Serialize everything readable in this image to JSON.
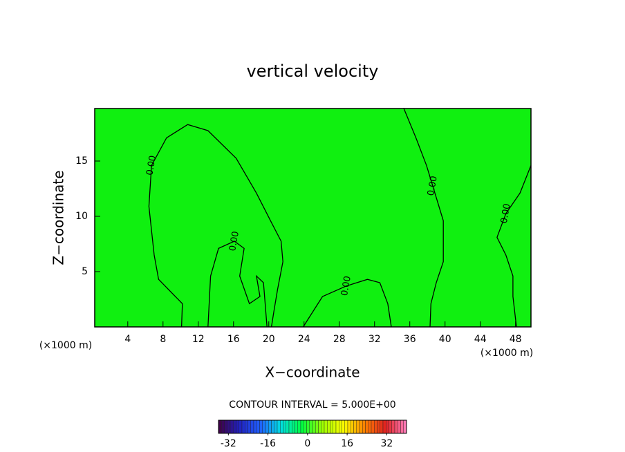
{
  "chart_data": {
    "type": "contour",
    "title": "vertical velocity",
    "x_label": "X−coordinate",
    "y_label": "Z−coordinate",
    "x_unit": "(×1000 m)",
    "y_unit": "(×1000 m)",
    "xlim": [
      0.25,
      49.75
    ],
    "ylim": [
      0,
      19.75
    ],
    "xticks": [
      4,
      8,
      12,
      16,
      20,
      24,
      28,
      32,
      36,
      40,
      44,
      48
    ],
    "yticks": [
      5,
      10,
      15
    ],
    "field_color": "#10f010",
    "line_color": "#000000",
    "contours": [
      {
        "level": 0,
        "label": "0.00",
        "x": [
          10.1,
          10.2,
          7.5,
          7.0,
          6.4,
          6.7,
          8.4,
          10.8,
          13.1,
          16.3,
          18.6,
          20.2,
          21.4,
          21.6,
          21.0,
          20.6,
          20.3
        ],
        "y": [
          0,
          2.1,
          4.3,
          6.5,
          10.9,
          14.6,
          17.1,
          18.3,
          17.75,
          15.25,
          12.1,
          9.6,
          7.75,
          5.9,
          3.4,
          1.5,
          0
        ]
      },
      {
        "level": 0,
        "label": "0.00",
        "x": [
          13.1,
          13.4,
          14.3,
          16.1,
          17.2,
          16.7,
          17.8,
          19.0,
          18.6,
          19.4,
          19.8
        ],
        "y": [
          0,
          4.6,
          7.1,
          7.75,
          7.1,
          4.6,
          2.1,
          2.75,
          4.6,
          4.0,
          0
        ]
      },
      {
        "level": 0,
        "label": "0.00",
        "x": [
          35.3,
          36.7,
          37.9,
          38.6,
          39.8,
          39.8,
          39.0,
          38.4,
          38.3
        ],
        "y": [
          19.8,
          17.1,
          14.6,
          12.75,
          9.6,
          5.9,
          4.0,
          2.1,
          0
        ]
      },
      {
        "level": 0,
        "label": "0.00",
        "x": [
          49.75,
          48.5,
          46.9,
          45.9,
          46.9,
          47.7,
          47.7,
          48.1
        ],
        "y": [
          14.6,
          12.1,
          10.25,
          8.1,
          6.5,
          4.6,
          2.75,
          0
        ]
      },
      {
        "level": 0,
        "label": "0.00",
        "x": [
          23.9,
          26.1,
          28.8,
          31.2,
          32.6,
          33.5,
          33.9
        ],
        "y": [
          0,
          2.75,
          3.7,
          4.3,
          4.0,
          2.1,
          0
        ]
      }
    ],
    "contour_interval_text": "CONTOUR INTERVAL = 5.000E+00",
    "colorbar": {
      "lim": [
        -36,
        40
      ],
      "ticks": [
        -32,
        -16,
        0,
        16,
        32
      ],
      "steps": 64,
      "colormap": [
        "#400040",
        "#2020c0",
        "#2060ff",
        "#00e0e0",
        "#00ff40",
        "#a0ff00",
        "#ffff00",
        "#ff8000",
        "#e02020",
        "#ff80c0"
      ]
    }
  }
}
